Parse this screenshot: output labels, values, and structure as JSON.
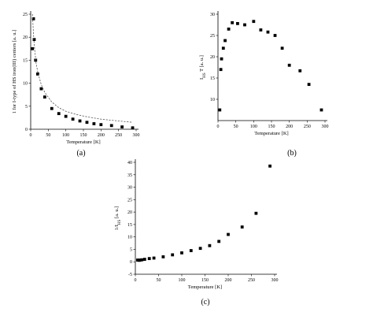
{
  "figure": {
    "panel_labels": [
      "(a)",
      "(b)",
      "(c)"
    ]
  },
  "chart_data": [
    {
      "type": "scatter",
      "panel": "(a)",
      "xlabel": "Temperature [K]",
      "ylabel": "1 for I-type of HS iron(III) centers [a. u.]",
      "xlim": [
        0,
        300
      ],
      "ylim": [
        0,
        25
      ],
      "xticks": [
        0,
        50,
        100,
        150,
        200,
        250,
        300
      ],
      "yticks": [
        0,
        5,
        10,
        15,
        20,
        25
      ],
      "grid": false,
      "legend": "none",
      "series": [
        {
          "kind": "markers",
          "marker": "square",
          "x": [
            5,
            8,
            10,
            14,
            20,
            30,
            40,
            60,
            80,
            100,
            120,
            140,
            160,
            180,
            200,
            230,
            260,
            290
          ],
          "y": [
            17.5,
            24,
            19.5,
            15,
            12,
            8.8,
            7,
            4.5,
            3.4,
            2.8,
            2.2,
            1.8,
            1.5,
            1.2,
            1.0,
            0.8,
            0.5,
            0.3
          ]
        },
        {
          "kind": "fit",
          "style": "dashed",
          "x": [
            5,
            8,
            10,
            15,
            20,
            30,
            40,
            60,
            80,
            100,
            130,
            160,
            200,
            250,
            290
          ],
          "y": [
            25,
            20.5,
            18.5,
            14.5,
            12.5,
            9.7,
            8.0,
            5.9,
            4.7,
            3.9,
            3.2,
            2.7,
            2.2,
            1.8,
            1.5
          ]
        }
      ]
    },
    {
      "type": "scatter",
      "panel": "(b)",
      "xlabel": "Temperature [K]",
      "ylabel": "I_HS T [a. u.]",
      "xlim": [
        0,
        300
      ],
      "ylim": [
        5,
        30
      ],
      "xticks": [
        0,
        50,
        100,
        150,
        200,
        250,
        300
      ],
      "yticks": [
        10,
        15,
        20,
        25,
        30
      ],
      "grid": false,
      "legend": "none",
      "series": [
        {
          "kind": "markers",
          "marker": "square",
          "x": [
            5,
            8,
            10,
            15,
            20,
            30,
            40,
            55,
            75,
            100,
            120,
            140,
            160,
            180,
            200,
            230,
            255,
            290
          ],
          "y": [
            7.5,
            17,
            19.5,
            22,
            23.8,
            26.5,
            28,
            27.8,
            27.5,
            28.3,
            26.3,
            25.8,
            25,
            22,
            18,
            16.7,
            13.5,
            7.5
          ]
        }
      ]
    },
    {
      "type": "scatter",
      "panel": "(c)",
      "xlabel": "Temperature [K]",
      "ylabel": "1/I_HS [a. u.]",
      "xlim": [
        0,
        300
      ],
      "ylim": [
        -5,
        40
      ],
      "xticks": [
        0,
        50,
        100,
        150,
        200,
        250,
        300
      ],
      "yticks": [
        -5,
        0,
        5,
        10,
        15,
        20,
        25,
        30,
        35,
        40
      ],
      "grid": false,
      "legend": "none",
      "series": [
        {
          "kind": "markers",
          "marker": "square",
          "x": [
            5,
            8,
            10,
            14,
            20,
            30,
            40,
            60,
            80,
            100,
            120,
            140,
            160,
            180,
            200,
            230,
            260,
            290
          ],
          "y": [
            0.7,
            0.6,
            0.7,
            0.8,
            1.0,
            1.3,
            1.5,
            2.0,
            2.8,
            3.6,
            4.5,
            5.4,
            6.5,
            8.2,
            11,
            14,
            19.5,
            38.5
          ]
        }
      ]
    }
  ]
}
